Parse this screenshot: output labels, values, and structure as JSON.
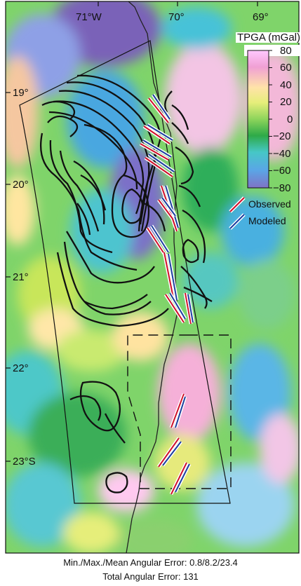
{
  "map": {
    "lon_labels": [
      "71°W",
      "70°",
      "69°"
    ],
    "lat_labels": [
      "19°",
      "20°",
      "21°",
      "22°",
      "23°S"
    ]
  },
  "colorbar": {
    "title": "TPGA (mGal)",
    "ticks": [
      "80",
      "60",
      "40",
      "20",
      "0",
      "−20",
      "−40",
      "−60",
      "−80"
    ],
    "colors": [
      "#ffc8ff",
      "#f0a0d4",
      "#ffe3a8",
      "#e6ee7a",
      "#8dd45b",
      "#2eaa48",
      "#46c7c6",
      "#5aa6e6",
      "#7f73c6"
    ]
  },
  "legend": {
    "observed_label": "Observed",
    "modeled_label": "Modeled",
    "observed_color": "#d0102a",
    "modeled_color": "#1c3fa0"
  },
  "footer": {
    "line1": "Min./Max./Mean Angular Error:  0.8/8.2/23.4",
    "line2": "Total Angular Error:  131"
  }
}
